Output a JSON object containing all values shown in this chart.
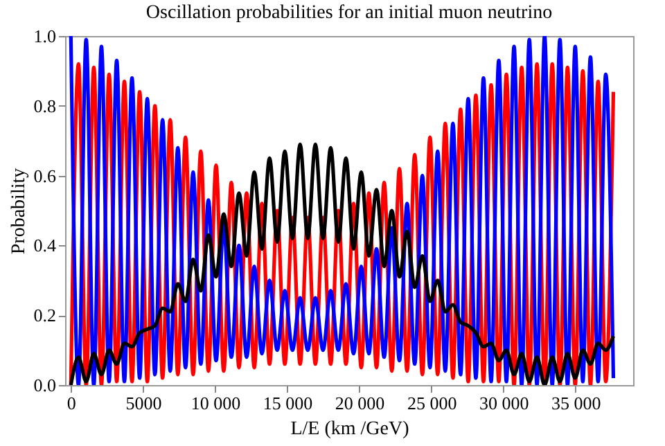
{
  "chart_data": {
    "type": "line",
    "title": "Oscillation probabilities for an initial muon neutrino",
    "xlabel": "L/E (km /GeV)",
    "ylabel": "Probability",
    "x": [
      0,
      530,
      1060,
      1590,
      2120,
      2650,
      3180,
      3710,
      4240,
      4770,
      5300,
      5830,
      6360,
      6890,
      7420,
      7950,
      8480,
      9010,
      9540,
      10070,
      10600,
      11130,
      11660,
      12190,
      12720,
      13250,
      13780,
      14310,
      14840,
      15370,
      15900,
      16430,
      16960,
      17490,
      18020,
      18550,
      19080,
      19610,
      20140,
      20670,
      21200,
      21730,
      22260,
      22790,
      23320,
      23850,
      24380,
      24910,
      25440,
      25970,
      26500,
      27030,
      27560,
      28090,
      28620,
      29150,
      29680,
      30210,
      30740,
      31270,
      31800,
      32330,
      32860,
      33390,
      33920,
      34450,
      34980,
      35510,
      36040,
      36570,
      37100,
      37630
    ],
    "series": [
      {
        "color": "#000000",
        "values": [
          0.0,
          0.08,
          0.01,
          0.09,
          0.03,
          0.1,
          0.06,
          0.12,
          0.11,
          0.15,
          0.16,
          0.17,
          0.22,
          0.21,
          0.29,
          0.24,
          0.36,
          0.27,
          0.43,
          0.31,
          0.49,
          0.34,
          0.55,
          0.37,
          0.61,
          0.39,
          0.65,
          0.41,
          0.67,
          0.42,
          0.69,
          0.42,
          0.69,
          0.42,
          0.68,
          0.41,
          0.65,
          0.39,
          0.61,
          0.37,
          0.56,
          0.34,
          0.5,
          0.31,
          0.44,
          0.28,
          0.37,
          0.24,
          0.3,
          0.21,
          0.23,
          0.18,
          0.17,
          0.15,
          0.11,
          0.12,
          0.07,
          0.1,
          0.03,
          0.09,
          0.01,
          0.08,
          0.0,
          0.08,
          0.01,
          0.09,
          0.02,
          0.1,
          0.06,
          0.12,
          0.1,
          0.14
        ]
      },
      {
        "color": "#ff0000",
        "values": [
          0.0,
          0.92,
          0.0,
          0.91,
          0.0,
          0.89,
          0.01,
          0.87,
          0.01,
          0.84,
          0.01,
          0.8,
          0.02,
          0.76,
          0.03,
          0.71,
          0.03,
          0.67,
          0.04,
          0.63,
          0.04,
          0.58,
          0.05,
          0.55,
          0.05,
          0.52,
          0.06,
          0.5,
          0.06,
          0.48,
          0.06,
          0.48,
          0.06,
          0.48,
          0.06,
          0.5,
          0.06,
          0.52,
          0.05,
          0.55,
          0.05,
          0.58,
          0.04,
          0.62,
          0.04,
          0.66,
          0.03,
          0.71,
          0.03,
          0.75,
          0.02,
          0.79,
          0.01,
          0.83,
          0.01,
          0.86,
          0.01,
          0.89,
          0.0,
          0.91,
          0.0,
          0.92,
          0.0,
          0.92,
          0.0,
          0.91,
          0.0,
          0.9,
          0.0,
          0.87,
          0.01,
          0.84
        ]
      },
      {
        "color": "#0000ff",
        "values": [
          1.0,
          0.0,
          0.99,
          0.0,
          0.97,
          0.01,
          0.93,
          0.01,
          0.88,
          0.02,
          0.82,
          0.03,
          0.76,
          0.04,
          0.68,
          0.05,
          0.61,
          0.06,
          0.53,
          0.07,
          0.46,
          0.08,
          0.4,
          0.08,
          0.34,
          0.09,
          0.3,
          0.1,
          0.27,
          0.1,
          0.25,
          0.1,
          0.25,
          0.1,
          0.27,
          0.1,
          0.29,
          0.09,
          0.34,
          0.09,
          0.39,
          0.08,
          0.45,
          0.07,
          0.52,
          0.06,
          0.6,
          0.05,
          0.67,
          0.04,
          0.75,
          0.03,
          0.82,
          0.02,
          0.88,
          0.01,
          0.93,
          0.01,
          0.97,
          0.0,
          0.99,
          0.0,
          1.0,
          0.0,
          0.99,
          0.0,
          0.97,
          0.01,
          0.94,
          0.01,
          0.89,
          0.02
        ]
      }
    ],
    "xlim": [
      -400,
      39000
    ],
    "ylim": [
      0,
      1
    ],
    "xticks": [
      0,
      5000,
      {
        "value": 10000,
        "label": "10 000"
      },
      {
        "value": 15000,
        "label": "15 000"
      },
      {
        "value": 20000,
        "label": "20 000"
      },
      {
        "value": 25000,
        "label": "25 000"
      },
      {
        "value": 30000,
        "label": "30 000"
      },
      {
        "value": 35000,
        "label": "35 000"
      }
    ],
    "yticks": [
      {
        "value": 0,
        "label": "0.0"
      },
      {
        "value": 0.2,
        "label": "0.2"
      },
      {
        "value": 0.4,
        "label": "0.4"
      },
      {
        "value": 0.6,
        "label": "0.6"
      },
      {
        "value": 0.8,
        "label": "0.8"
      },
      {
        "value": 1,
        "label": "1.0"
      }
    ],
    "grid": false
  }
}
